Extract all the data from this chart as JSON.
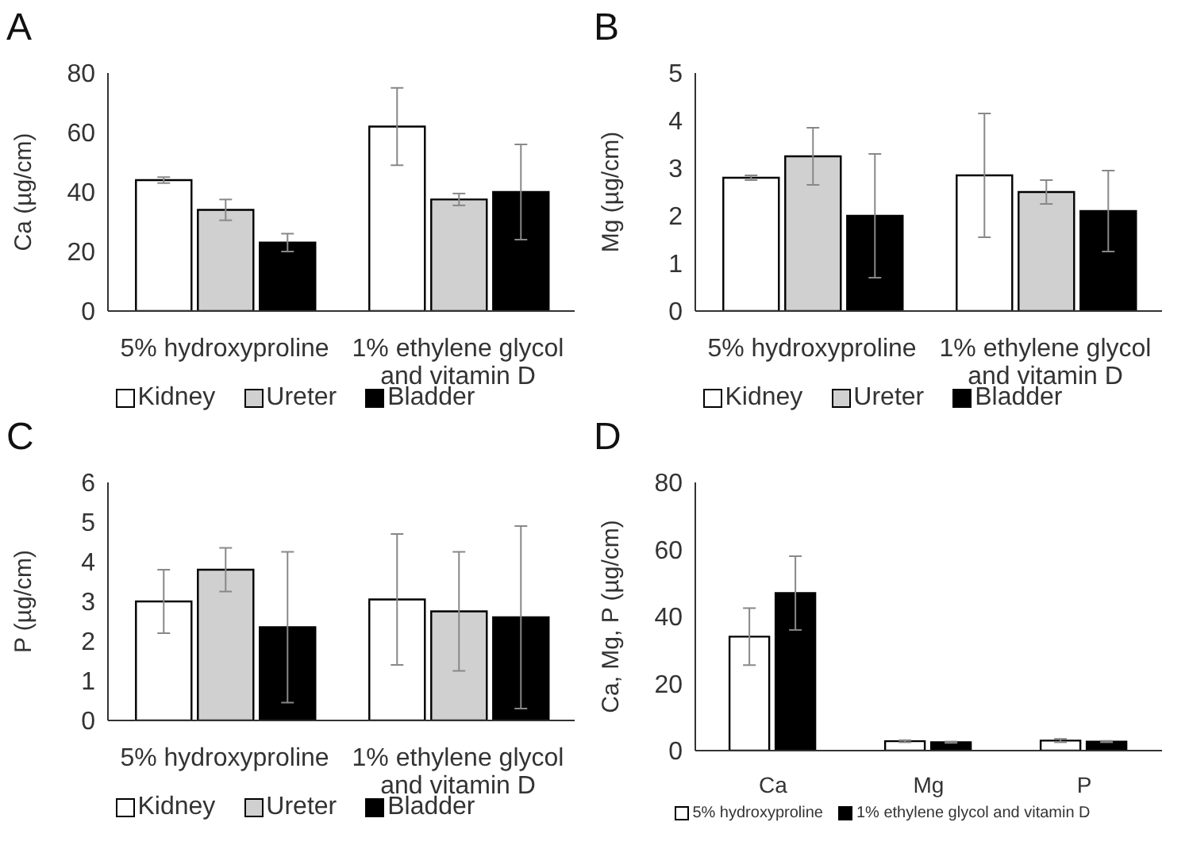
{
  "chart_data": [
    {
      "type": "bar",
      "title": "A",
      "ylabel": "Ca (µg/cm)",
      "categories": [
        "5% hydroxyproline",
        "1% ethylene glycol and vitamin D"
      ],
      "ylim": [
        0,
        80
      ],
      "yticks": [
        0,
        20,
        40,
        60,
        80
      ],
      "grid": false,
      "legend": "bottom",
      "series": [
        {
          "name": "Kidney",
          "color": "#ffffff",
          "values": [
            44,
            62
          ],
          "errors": [
            1,
            13
          ]
        },
        {
          "name": "Ureter",
          "color": "#d0d0d0",
          "values": [
            34,
            37.5
          ],
          "errors": [
            3.5,
            2
          ]
        },
        {
          "name": "Bladder",
          "color": "#000000",
          "values": [
            23,
            40
          ],
          "errors": [
            3,
            16
          ]
        }
      ]
    },
    {
      "type": "bar",
      "title": "B",
      "ylabel": "Mg (µg/cm)",
      "categories": [
        "5% hydroxyproline",
        "1% ethylene glycol and vitamin D"
      ],
      "ylim": [
        0,
        5
      ],
      "yticks": [
        0,
        1,
        2,
        3,
        4,
        5
      ],
      "grid": false,
      "legend": "bottom",
      "series": [
        {
          "name": "Kidney",
          "color": "#ffffff",
          "values": [
            2.8,
            2.85
          ],
          "errors": [
            0.05,
            1.3
          ]
        },
        {
          "name": "Ureter",
          "color": "#d0d0d0",
          "values": [
            3.25,
            2.5
          ],
          "errors": [
            0.6,
            0.25
          ]
        },
        {
          "name": "Bladder",
          "color": "#000000",
          "values": [
            2.0,
            2.1
          ],
          "errors": [
            1.3,
            0.85
          ]
        }
      ]
    },
    {
      "type": "bar",
      "title": "C",
      "ylabel": "P (µg/cm)",
      "categories": [
        "5% hydroxyproline",
        "1% ethylene glycol and vitamin D"
      ],
      "ylim": [
        0,
        6
      ],
      "yticks": [
        0,
        1,
        2,
        3,
        4,
        5,
        6
      ],
      "grid": false,
      "legend": "bottom",
      "series": [
        {
          "name": "Kidney",
          "color": "#ffffff",
          "values": [
            3.0,
            3.05
          ],
          "errors": [
            0.8,
            1.65
          ]
        },
        {
          "name": "Ureter",
          "color": "#d0d0d0",
          "values": [
            3.8,
            2.75
          ],
          "errors": [
            0.55,
            1.5
          ]
        },
        {
          "name": "Bladder",
          "color": "#000000",
          "values": [
            2.35,
            2.6
          ],
          "errors": [
            1.9,
            2.3
          ]
        }
      ]
    },
    {
      "type": "bar",
      "title": "D",
      "ylabel": "Ca, Mg, P (µg/cm)",
      "categories": [
        "Ca",
        "Mg",
        "P"
      ],
      "ylim": [
        0,
        80
      ],
      "yticks": [
        0,
        20,
        40,
        60,
        80
      ],
      "grid": false,
      "legend": "bottom",
      "series": [
        {
          "name": "5% hydroxyproline",
          "color": "#ffffff",
          "values": [
            34,
            2.8,
            3.0
          ],
          "errors": [
            8.5,
            0.3,
            0.5
          ]
        },
        {
          "name": "1% ethylene glycol and vitamin D",
          "color": "#000000",
          "values": [
            47,
            2.5,
            2.7
          ],
          "errors": [
            11,
            0.2,
            0.2
          ]
        }
      ]
    }
  ]
}
